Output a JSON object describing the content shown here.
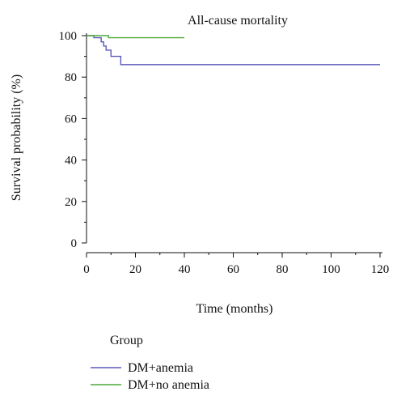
{
  "chart_data": {
    "type": "line",
    "subtype": "kaplan-meier step",
    "title": "All-cause mortality",
    "xlabel": "Time (months)",
    "ylabel": "Survival probability (%)",
    "xlim": [
      0,
      120
    ],
    "ylim": [
      0,
      100
    ],
    "x_ticks": [
      0,
      20,
      40,
      60,
      80,
      100,
      120
    ],
    "y_ticks": [
      0,
      20,
      40,
      60,
      80,
      100
    ],
    "grid": false,
    "legend": {
      "title": "Group",
      "position": "bottom-left"
    },
    "series": [
      {
        "name": "DM+anemia",
        "color": "#5a58b8",
        "steps": [
          {
            "x": 0,
            "y": 100
          },
          {
            "x": 3,
            "y": 99
          },
          {
            "x": 6,
            "y": 97
          },
          {
            "x": 7,
            "y": 95
          },
          {
            "x": 8,
            "y": 93
          },
          {
            "x": 10,
            "y": 90
          },
          {
            "x": 14,
            "y": 86
          },
          {
            "x": 120,
            "y": 86
          }
        ]
      },
      {
        "name": "DM+no anemia",
        "color": "#4caa3a",
        "steps": [
          {
            "x": 0,
            "y": 100
          },
          {
            "x": 9,
            "y": 99
          },
          {
            "x": 40,
            "y": 99
          }
        ]
      }
    ]
  }
}
